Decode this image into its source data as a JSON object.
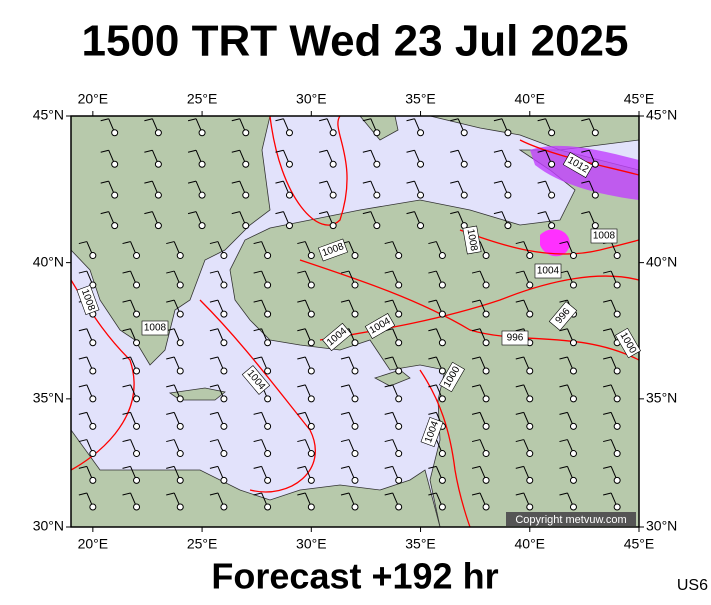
{
  "title": "1500 TRT Wed 23 Jul 2025",
  "footer": "Forecast +192 hr",
  "model": "US6",
  "copyright": "Copyright metvuw.com",
  "map": {
    "lonlim": [
      19,
      45
    ],
    "latlim": [
      30,
      45
    ],
    "lon_ticks": [
      {
        "value": 20,
        "label": "20°E"
      },
      {
        "value": 25,
        "label": "25°E"
      },
      {
        "value": 30,
        "label": "30°E"
      },
      {
        "value": 35,
        "label": "35°E"
      },
      {
        "value": 40,
        "label": "40°E"
      },
      {
        "value": 45,
        "label": "45°E"
      }
    ],
    "lat_ticks": [
      {
        "value": 30,
        "label": "30°N"
      },
      {
        "value": 35,
        "label": "35°N"
      },
      {
        "value": 40,
        "label": "40°N"
      },
      {
        "value": 45,
        "label": "45°N"
      }
    ],
    "isobar_labels": [
      1012,
      1008,
      1008,
      1008,
      1008,
      1008,
      1004,
      1004,
      1004,
      1004,
      1004,
      1000,
      1000,
      996,
      996
    ]
  }
}
